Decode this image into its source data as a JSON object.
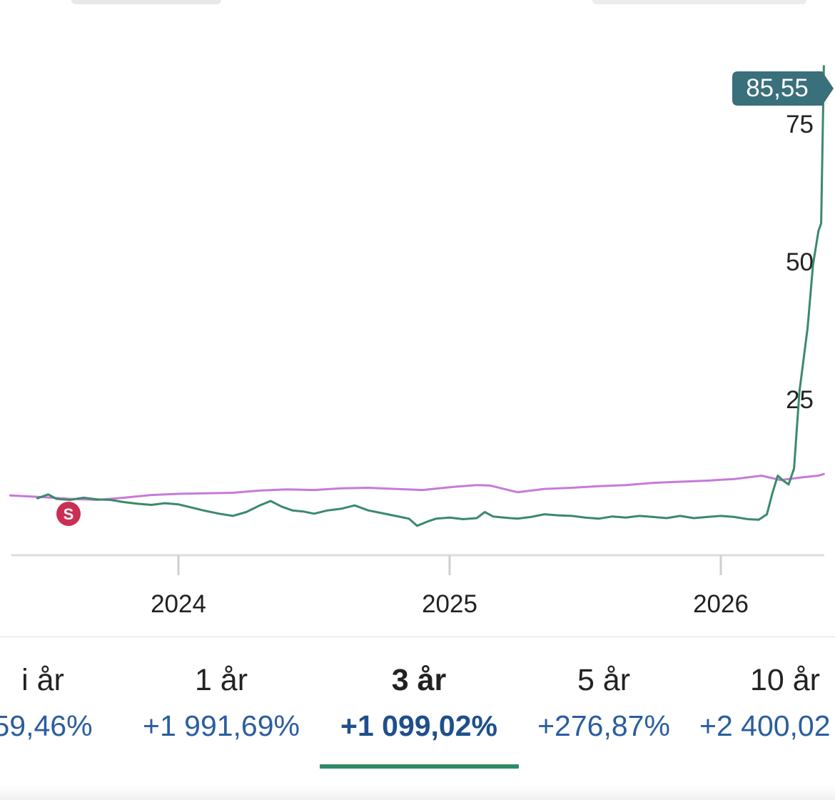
{
  "chart_data": {
    "type": "line",
    "x_ticks": [
      "2024",
      "2025",
      "2026"
    ],
    "y_ticks": [
      "25",
      "50",
      "75"
    ],
    "ylim": [
      0,
      85.55
    ],
    "last_value_label": "85,55",
    "marker_label": "S",
    "series": [
      {
        "color": "#3a8a6a",
        "points": [
          [
            2023.48,
            7.1
          ],
          [
            2023.52,
            7.8
          ],
          [
            2023.55,
            7.0
          ],
          [
            2023.6,
            6.8
          ],
          [
            2023.65,
            7.2
          ],
          [
            2023.7,
            6.9
          ],
          [
            2023.75,
            6.8
          ],
          [
            2023.8,
            6.4
          ],
          [
            2023.85,
            6.1
          ],
          [
            2023.9,
            5.9
          ],
          [
            2023.95,
            6.2
          ],
          [
            2024.0,
            6.0
          ],
          [
            2024.05,
            5.4
          ],
          [
            2024.1,
            4.8
          ],
          [
            2024.15,
            4.3
          ],
          [
            2024.2,
            3.9
          ],
          [
            2024.25,
            4.6
          ],
          [
            2024.3,
            5.8
          ],
          [
            2024.34,
            6.6
          ],
          [
            2024.38,
            5.6
          ],
          [
            2024.42,
            4.9
          ],
          [
            2024.46,
            4.7
          ],
          [
            2024.5,
            4.3
          ],
          [
            2024.55,
            4.9
          ],
          [
            2024.6,
            5.2
          ],
          [
            2024.65,
            5.8
          ],
          [
            2024.7,
            4.9
          ],
          [
            2024.75,
            4.4
          ],
          [
            2024.8,
            3.9
          ],
          [
            2024.85,
            3.4
          ],
          [
            2024.88,
            2.1
          ],
          [
            2024.92,
            2.9
          ],
          [
            2024.95,
            3.4
          ],
          [
            2025.0,
            3.6
          ],
          [
            2025.05,
            3.3
          ],
          [
            2025.1,
            3.5
          ],
          [
            2025.13,
            4.6
          ],
          [
            2025.16,
            3.8
          ],
          [
            2025.2,
            3.6
          ],
          [
            2025.25,
            3.4
          ],
          [
            2025.3,
            3.7
          ],
          [
            2025.35,
            4.2
          ],
          [
            2025.4,
            4.0
          ],
          [
            2025.45,
            3.9
          ],
          [
            2025.5,
            3.6
          ],
          [
            2025.55,
            3.4
          ],
          [
            2025.6,
            3.8
          ],
          [
            2025.65,
            3.6
          ],
          [
            2025.7,
            3.9
          ],
          [
            2025.75,
            3.7
          ],
          [
            2025.8,
            3.5
          ],
          [
            2025.85,
            3.9
          ],
          [
            2025.9,
            3.5
          ],
          [
            2025.95,
            3.7
          ],
          [
            2026.0,
            3.9
          ],
          [
            2026.05,
            3.7
          ],
          [
            2026.1,
            3.3
          ],
          [
            2026.14,
            3.2
          ],
          [
            2026.17,
            4.2
          ],
          [
            2026.19,
            8.0
          ],
          [
            2026.21,
            11.2
          ],
          [
            2026.23,
            10.3
          ],
          [
            2026.25,
            9.6
          ],
          [
            2026.27,
            12.5
          ],
          [
            2026.29,
            26.5
          ],
          [
            2026.32,
            38.0
          ],
          [
            2026.34,
            49.5
          ],
          [
            2026.36,
            55.6
          ],
          [
            2026.37,
            57.0
          ],
          [
            2026.38,
            85.55
          ]
        ]
      },
      {
        "color": "#c77ad8",
        "points": [
          [
            2023.38,
            7.6
          ],
          [
            2023.5,
            7.3
          ],
          [
            2023.6,
            7.0
          ],
          [
            2023.7,
            6.8
          ],
          [
            2023.8,
            7.2
          ],
          [
            2023.9,
            7.7
          ],
          [
            2024.0,
            7.9
          ],
          [
            2024.1,
            8.0
          ],
          [
            2024.2,
            8.1
          ],
          [
            2024.3,
            8.5
          ],
          [
            2024.4,
            8.7
          ],
          [
            2024.5,
            8.6
          ],
          [
            2024.6,
            8.9
          ],
          [
            2024.7,
            9.0
          ],
          [
            2024.8,
            8.8
          ],
          [
            2024.9,
            8.6
          ],
          [
            2025.0,
            9.1
          ],
          [
            2025.1,
            9.5
          ],
          [
            2025.15,
            9.4
          ],
          [
            2025.25,
            8.2
          ],
          [
            2025.35,
            8.8
          ],
          [
            2025.45,
            9.0
          ],
          [
            2025.55,
            9.3
          ],
          [
            2025.65,
            9.5
          ],
          [
            2025.75,
            9.9
          ],
          [
            2025.85,
            10.1
          ],
          [
            2025.95,
            10.3
          ],
          [
            2026.05,
            10.6
          ],
          [
            2026.15,
            11.2
          ],
          [
            2026.22,
            10.4
          ],
          [
            2026.3,
            10.9
          ],
          [
            2026.36,
            11.2
          ],
          [
            2026.38,
            11.5
          ]
        ]
      }
    ]
  },
  "tabs": [
    {
      "period": "i år",
      "change": "59,46%"
    },
    {
      "period": "1 år",
      "change": "+1 991,69%"
    },
    {
      "period": "3 år",
      "change": "+1 099,02%",
      "active": true
    },
    {
      "period": "5 år",
      "change": "+276,87%"
    },
    {
      "period": "10 år",
      "change": "+2 400,02"
    }
  ],
  "colors": {
    "stock_line": "#3a8a6a",
    "index_line": "#c77ad8",
    "value_badge": "#3a6f7c",
    "marker": "#c92f53",
    "active_underline": "#2e8b66",
    "change_text": "#2a5d9f"
  }
}
